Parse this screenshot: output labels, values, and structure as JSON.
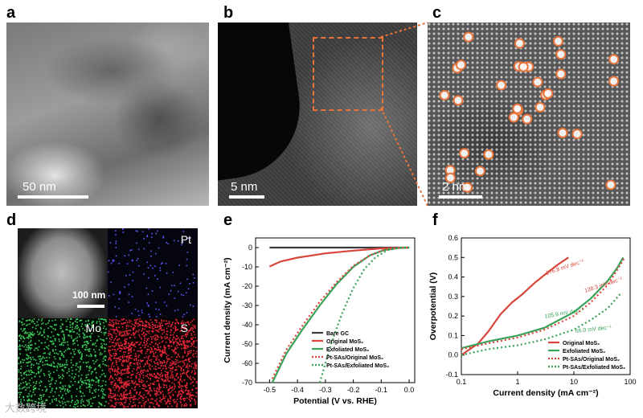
{
  "panels": {
    "a": {
      "label": "a",
      "scale_text": "50 nm"
    },
    "b": {
      "label": "b",
      "scale_text": "5 nm"
    },
    "c": {
      "label": "c",
      "scale_text": "2 nm"
    },
    "d": {
      "label": "d",
      "scale_text": "100 nm",
      "map_labels": [
        "Pt",
        "Mo",
        "S"
      ]
    },
    "e": {
      "label": "e"
    },
    "f": {
      "label": "f"
    }
  },
  "colors": {
    "bare_gc": "#3a3a3a",
    "original": "#d9453a",
    "exfoliated": "#3aa35a",
    "pt_original": "#d9453a",
    "pt_exfoliated": "#3aa35a",
    "highlight": "#e8743a"
  },
  "watermark": "大数跨境",
  "chart_data": [
    {
      "type": "line",
      "xlabel": "Potential (V vs. RHE)",
      "ylabel": "Current density (mA cm⁻²)",
      "xlim": [
        -0.55,
        0.02
      ],
      "ylim": [
        -70,
        5
      ],
      "xticks": [
        "-0.5",
        "-0.4",
        "-0.3",
        "-0.2",
        "-0.1",
        "0.0"
      ],
      "yticks": [
        "0",
        "-10",
        "-20",
        "-30",
        "-40",
        "-50",
        "-60",
        "-70"
      ],
      "legend_position": "bottom-right",
      "series": [
        {
          "name": "Bare GC",
          "color": "#3a3a3a",
          "dash": false,
          "x": [
            -0.5,
            -0.3,
            0.0
          ],
          "y": [
            0,
            0,
            0
          ]
        },
        {
          "name": "Original MoS₂",
          "color": "#d9453a",
          "dash": false,
          "x": [
            -0.5,
            -0.46,
            -0.4,
            -0.3,
            -0.2,
            -0.1,
            0.0
          ],
          "y": [
            -9.8,
            -7.2,
            -5.2,
            -3,
            -1.6,
            -0.4,
            0
          ]
        },
        {
          "name": "Exfoliated MoS₂",
          "color": "#3aa35a",
          "dash": false,
          "x": [
            -0.49,
            -0.44,
            -0.38,
            -0.32,
            -0.26,
            -0.2,
            -0.14,
            -0.09,
            -0.04,
            0.0
          ],
          "y": [
            -70,
            -55,
            -42,
            -30,
            -19,
            -10,
            -4,
            -1.3,
            -0.2,
            0
          ]
        },
        {
          "name": "Pt-SAs/Original MoS₂",
          "color": "#d9453a",
          "dash": true,
          "x": [
            -0.49,
            -0.44,
            -0.38,
            -0.32,
            -0.26,
            -0.2,
            -0.14,
            -0.09,
            -0.04,
            0.0
          ],
          "y": [
            -68,
            -53,
            -40,
            -28,
            -18,
            -9.5,
            -4,
            -1.2,
            -0.2,
            0
          ]
        },
        {
          "name": "Pt-SAs/Exfoliated MoS₂",
          "color": "#3aa35a",
          "dash": true,
          "x": [
            -0.32,
            -0.28,
            -0.24,
            -0.2,
            -0.16,
            -0.12,
            -0.08,
            -0.05,
            -0.02,
            0.0
          ],
          "y": [
            -70,
            -50,
            -34,
            -21,
            -11,
            -5,
            -1.5,
            -0.5,
            -0.1,
            0
          ]
        }
      ]
    },
    {
      "type": "line",
      "xlabel": "Current density (mA cm⁻²)",
      "ylabel": "Overpotential (V)",
      "xscale": "log",
      "xlim": [
        0.1,
        100
      ],
      "ylim": [
        -0.1,
        0.6
      ],
      "xticks": [
        "0.1",
        "1",
        "10",
        "100"
      ],
      "yticks": [
        "0.6",
        "0.5",
        "0.4",
        "0.3",
        "0.2",
        "0.1",
        "0.0",
        "-0.1"
      ],
      "legend_position": "bottom-right",
      "annotations": [
        {
          "text": "176.8 mV dec⁻¹",
          "color": "#d9453a"
        },
        {
          "text": "128.3 mV dec⁻¹",
          "color": "#d9453a"
        },
        {
          "text": "105.9 mV dec⁻¹",
          "color": "#3aa35a"
        },
        {
          "text": "66.0 mV dec⁻¹",
          "color": "#3aa35a"
        }
      ],
      "series": [
        {
          "name": "Original MoS₂",
          "color": "#d9453a",
          "dash": false,
          "x": [
            0.1,
            0.2,
            0.3,
            0.5,
            0.8,
            1.2,
            2,
            3,
            5,
            8
          ],
          "y": [
            0.0,
            0.06,
            0.12,
            0.21,
            0.27,
            0.31,
            0.37,
            0.41,
            0.46,
            0.5
          ]
        },
        {
          "name": "Exfoliated MoS₂",
          "color": "#3aa35a",
          "dash": false,
          "x": [
            0.1,
            0.3,
            1,
            3,
            10,
            20,
            40,
            60,
            75
          ],
          "y": [
            0.035,
            0.07,
            0.1,
            0.14,
            0.22,
            0.29,
            0.38,
            0.45,
            0.5
          ]
        },
        {
          "name": "Pt-SAs/Original MoS₂",
          "color": "#d9453a",
          "dash": true,
          "x": [
            0.1,
            0.3,
            1,
            3,
            10,
            20,
            40,
            60,
            80
          ],
          "y": [
            0.03,
            0.06,
            0.09,
            0.13,
            0.2,
            0.27,
            0.36,
            0.44,
            0.5
          ]
        },
        {
          "name": "Pt-SAs/Exfoliated MoS₂",
          "color": "#3aa35a",
          "dash": true,
          "x": [
            0.1,
            0.3,
            1,
            3,
            10,
            20,
            40,
            70
          ],
          "y": [
            0.0,
            0.03,
            0.05,
            0.08,
            0.13,
            0.18,
            0.24,
            0.32
          ]
        }
      ]
    }
  ]
}
